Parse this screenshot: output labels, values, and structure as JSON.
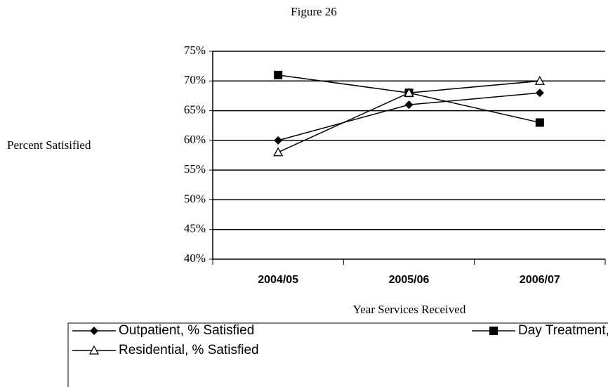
{
  "chart_data": {
    "type": "line",
    "title": "Figure 26",
    "x_label": "Year Services Received",
    "y_label": "Percent Satisified",
    "categories": [
      "2004/05",
      "2005/06",
      "2006/07"
    ],
    "series": [
      {
        "name": "Outpatient, % Satisfied",
        "color": "#000000",
        "marker": "diamond",
        "values": [
          60,
          66,
          68
        ]
      },
      {
        "name": "Day Treatment, % Satisfied",
        "color": "#000000",
        "marker": "square",
        "values": [
          71,
          68,
          63
        ]
      },
      {
        "name": "Residential, % Satisfied",
        "color": "#000000",
        "marker": "triangle-open",
        "values": [
          58,
          68,
          70
        ]
      }
    ],
    "ylim": [
      40,
      75
    ],
    "yticks": [
      {
        "value": 40,
        "label": "40%"
      },
      {
        "value": 45,
        "label": "45%"
      },
      {
        "value": 50,
        "label": "50%"
      },
      {
        "value": 55,
        "label": "55%"
      },
      {
        "value": 60,
        "label": "60%"
      },
      {
        "value": 65,
        "label": "65%"
      },
      {
        "value": 70,
        "label": "70%"
      },
      {
        "value": 75,
        "label": "75%"
      }
    ],
    "grid": true,
    "legend": "bottom"
  }
}
